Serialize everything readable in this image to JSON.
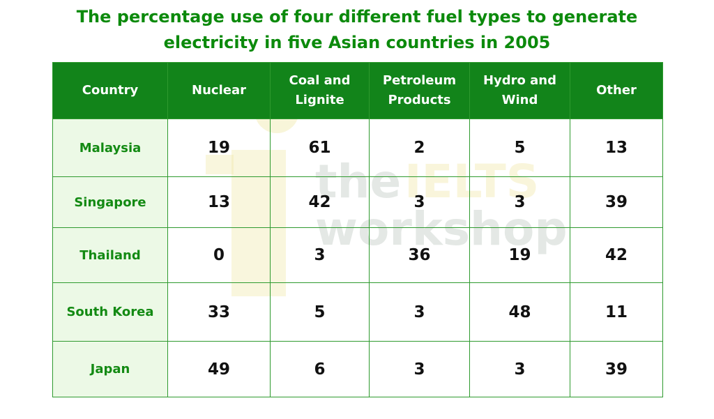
{
  "chart_data": {
    "type": "table",
    "title": "The percentage use of four different fuel types to generate electricity in five Asian countries in 2005",
    "columns": [
      "Country",
      "Nuclear",
      "Coal and Lignite",
      "Petroleum Products",
      "Hydro and Wind",
      "Other"
    ],
    "rows": [
      {
        "country": "Malaysia",
        "values": [
          19,
          61,
          2,
          5,
          13
        ]
      },
      {
        "country": "Singapore",
        "values": [
          13,
          42,
          3,
          3,
          39
        ]
      },
      {
        "country": "Thailand",
        "values": [
          0,
          3,
          36,
          19,
          42
        ]
      },
      {
        "country": "South Korea",
        "values": [
          33,
          5,
          3,
          48,
          11
        ]
      },
      {
        "country": "Japan",
        "values": [
          49,
          6,
          3,
          3,
          39
        ]
      }
    ]
  },
  "watermark": {
    "line1": "the",
    "line1_accent": "IELTS",
    "line2": "workshop"
  },
  "colors": {
    "title": "#0c8a0c",
    "header_bg": "#12841a",
    "country_bg": "#ecf9e6",
    "border": "#2e9a2e"
  }
}
